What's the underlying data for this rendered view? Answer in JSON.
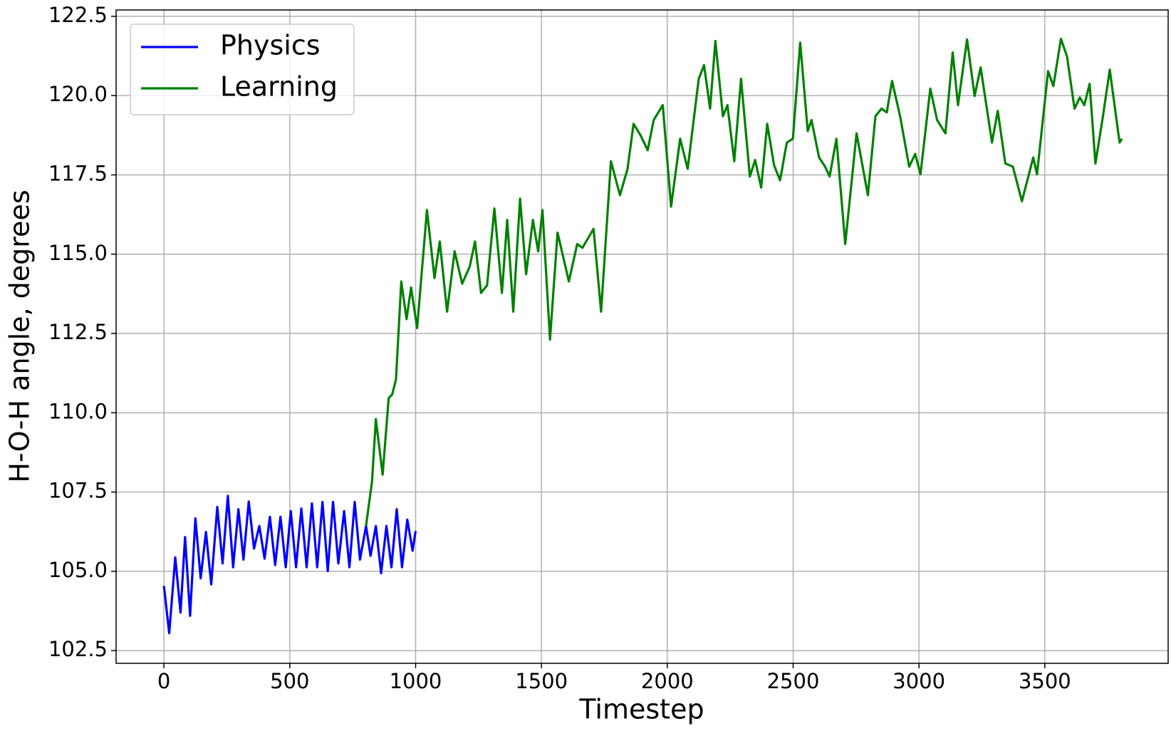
{
  "chart_data": {
    "type": "line",
    "xlabel": "Timestep",
    "ylabel": "H-O-H angle, degrees",
    "xlim": [
      -190,
      3990
    ],
    "ylim": [
      102.1,
      122.7
    ],
    "xticks": [
      0,
      500,
      1000,
      1500,
      2000,
      2500,
      3000,
      3500
    ],
    "yticks": [
      {
        "value": 102.5,
        "label": "102.5"
      },
      {
        "value": 105,
        "label": "105.0"
      },
      {
        "value": 107.5,
        "label": "107.5"
      },
      {
        "value": 110,
        "label": "110.0"
      },
      {
        "value": 112.5,
        "label": "112.5"
      },
      {
        "value": 115,
        "label": "115.0"
      },
      {
        "value": 117.5,
        "label": "117.5"
      },
      {
        "value": 120,
        "label": "120.0"
      },
      {
        "value": 122.5,
        "label": "122.5"
      }
    ],
    "grid": true,
    "legend": "upper left",
    "series": [
      {
        "name": "Physics",
        "color": "#0000ff",
        "x": [
          0,
          21,
          45,
          66,
          84,
          104,
          125,
          146,
          167,
          188,
          212,
          233,
          254,
          275,
          296,
          316,
          337,
          358,
          379,
          400,
          421,
          442,
          463,
          484,
          504,
          525,
          546,
          567,
          588,
          609,
          630,
          651,
          672,
          693,
          716,
          737,
          758,
          779,
          803,
          821,
          842,
          863,
          884,
          904,
          925,
          946,
          967,
          988,
          1000
        ],
        "values": [
          104.54,
          103.05,
          105.44,
          103.7,
          106.08,
          103.6,
          106.67,
          104.78,
          106.24,
          104.59,
          107.03,
          105.25,
          107.38,
          105.13,
          106.96,
          105.37,
          107.2,
          105.72,
          106.43,
          105.4,
          106.72,
          105.2,
          106.72,
          105.13,
          106.9,
          105.13,
          106.98,
          105.13,
          107.14,
          105.13,
          107.19,
          105.01,
          107.19,
          105.25,
          106.9,
          105.13,
          107.19,
          105.37,
          106.43,
          105.49,
          106.43,
          104.94,
          106.43,
          105.13,
          106.96,
          105.13,
          106.63,
          105.65,
          106.27
        ]
      },
      {
        "name": "Learning",
        "color": "#008000",
        "x": [
          803,
          827,
          842,
          869,
          893,
          907,
          922,
          943,
          964,
          982,
          1006,
          1045,
          1075,
          1096,
          1125,
          1155,
          1185,
          1215,
          1236,
          1260,
          1284,
          1313,
          1343,
          1364,
          1388,
          1415,
          1439,
          1466,
          1487,
          1504,
          1534,
          1564,
          1609,
          1642,
          1663,
          1707,
          1737,
          1776,
          1812,
          1842,
          1866,
          1893,
          1922,
          1946,
          1982,
          2015,
          2051,
          2081,
          2125,
          2146,
          2170,
          2191,
          2221,
          2239,
          2266,
          2293,
          2328,
          2349,
          2373,
          2397,
          2424,
          2448,
          2475,
          2499,
          2528,
          2558,
          2573,
          2603,
          2627,
          2645,
          2672,
          2707,
          2752,
          2797,
          2827,
          2851,
          2872,
          2893,
          2925,
          2961,
          2985,
          3006,
          3045,
          3072,
          3105,
          3134,
          3155,
          3191,
          3221,
          3245,
          3290,
          3313,
          3343,
          3373,
          3409,
          3454,
          3469,
          3513,
          3534,
          3564,
          3588,
          3618,
          3639,
          3657,
          3678,
          3701,
          3731,
          3758,
          3797,
          3806
        ],
        "values": [
          106.43,
          107.85,
          109.8,
          108.05,
          110.46,
          110.58,
          111.05,
          114.14,
          112.95,
          113.95,
          112.67,
          116.39,
          114.25,
          115.4,
          113.19,
          115.09,
          114.07,
          114.61,
          115.4,
          113.78,
          114.02,
          116.44,
          113.78,
          116.08,
          113.19,
          116.75,
          114.37,
          116.08,
          115.09,
          116.39,
          112.31,
          115.68,
          114.14,
          115.32,
          115.2,
          115.8,
          113.19,
          117.93,
          116.86,
          117.69,
          119.11,
          118.76,
          118.28,
          119.23,
          119.7,
          116.5,
          118.64,
          117.69,
          120.53,
          120.96,
          119.59,
          121.72,
          119.35,
          119.7,
          117.93,
          120.53,
          117.45,
          117.97,
          117.1,
          119.11,
          117.81,
          117.33,
          118.52,
          118.64,
          121.67,
          118.88,
          119.23,
          118.05,
          117.76,
          117.45,
          118.64,
          115.32,
          118.81,
          116.86,
          119.35,
          119.59,
          119.47,
          120.46,
          119.35,
          117.76,
          118.16,
          117.52,
          120.22,
          119.23,
          118.81,
          121.36,
          119.7,
          121.77,
          119.99,
          120.89,
          118.52,
          119.52,
          117.86,
          117.76,
          116.67,
          118.05,
          117.52,
          120.77,
          120.3,
          121.79,
          121.24,
          119.59,
          119.94,
          119.7,
          120.37,
          117.86,
          119.35,
          120.82,
          118.52,
          118.64
        ]
      }
    ]
  }
}
